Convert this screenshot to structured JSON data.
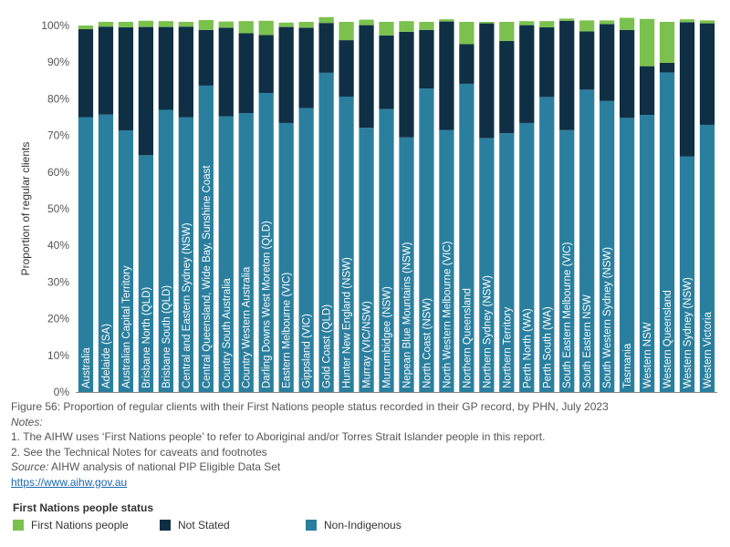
{
  "chart_data": {
    "type": "bar",
    "stacked": true,
    "orientation": "vertical",
    "ylabel": "Proportion of regular clients",
    "ylim": [
      0,
      100
    ],
    "yticks": [
      "0%",
      "10%",
      "20%",
      "30%",
      "40%",
      "50%",
      "60%",
      "70%",
      "80%",
      "90%",
      "100%"
    ],
    "grid": false,
    "legend_position": "bottom",
    "legend_title": "First Nations people status",
    "categories": [
      "Australia",
      "Adelaide (SA)",
      "Australian Capital Territory",
      "Brisbane North (QLD)",
      "Brisbane South (QLD)",
      "Central and Eastern Sydney (NSW)",
      "Central Queensland, Wide Bay, Sunshine Coast",
      "Country South Australia",
      "Country Western Australia",
      "Darling Downs West Moreton (QLD)",
      "Eastern Melbourne (VIC)",
      "Gippsland (VIC)",
      "Gold Coast (QLD)",
      "Hunter New England (NSW)",
      "Murray (VIC/NSW)",
      "Murrumbidgee (NSW)",
      "Nepean Blue Mountains (NSW)",
      "North Coast (NSW)",
      "North Western Melbourne (VIC)",
      "Northern Queensland",
      "Northern Sydney (NSW)",
      "Northern Territory",
      "Perth North (WA)",
      "Perth South (WA)",
      "South Eastern Melbourne (VIC)",
      "South Eastern NSW",
      "South Western Sydney (NSW)",
      "Tasmania",
      "Western NSW",
      "Western Queensland",
      "Western Sydney (NSW)",
      "Western Victoria"
    ],
    "series": [
      {
        "name": "Non-Indigenous",
        "color": "#2a7f9e",
        "values": [
          75.0,
          75.7,
          71.4,
          64.6,
          77.0,
          75.0,
          83.6,
          75.2,
          76.1,
          81.6,
          73.4,
          77.5,
          87.1,
          80.6,
          72.1,
          77.2,
          69.5,
          82.8,
          71.5,
          84.1,
          69.3,
          70.6,
          73.4,
          80.5,
          71.5,
          82.5,
          79.4,
          74.8,
          75.6,
          87.2,
          64.3,
          72.9
        ]
      },
      {
        "name": "Not Stated",
        "color": "#0f2f45",
        "values": [
          24.0,
          24.0,
          28.1,
          35.0,
          22.6,
          24.7,
          15.2,
          24.2,
          21.8,
          15.8,
          26.2,
          21.9,
          13.6,
          15.4,
          28.0,
          20.1,
          28.8,
          16.0,
          29.6,
          10.8,
          31.3,
          25.2,
          26.7,
          19.0,
          29.8,
          15.9,
          21.0,
          24.0,
          13.3,
          2.6,
          36.6,
          27.7
        ]
      },
      {
        "name": "First Nations people",
        "color": "#7ac14e",
        "values": [
          1.0,
          1.3,
          1.5,
          1.7,
          1.6,
          1.3,
          2.7,
          1.7,
          3.3,
          3.9,
          1.2,
          1.6,
          1.6,
          5.0,
          1.5,
          3.7,
          2.9,
          2.2,
          0.6,
          6.1,
          0.4,
          5.2,
          1.1,
          1.7,
          0.6,
          3.0,
          1.0,
          3.3,
          12.9,
          11.2,
          0.8,
          0.8
        ]
      }
    ]
  },
  "caption": {
    "figure_title": "Figure 56: Proportion of regular clients with their First Nations people status recorded in their GP record, by PHN, July 2023",
    "notes_heading": "Notes:",
    "note_1": "1. The AIHW uses ‘First Nations people’ to refer to Aboriginal and/or Torres Strait Islander people in this report.",
    "note_2": "2. See the Technical Notes for caveats and footnotes",
    "source_label": "Source:",
    "source_text": " AIHW analysis of national PIP Eligible Data Set",
    "link": "https://www.aihw.gov.au"
  },
  "legend": {
    "title": "First Nations people status",
    "items": [
      {
        "label": "First Nations people",
        "color": "#7ac14e"
      },
      {
        "label": "Not Stated",
        "color": "#0f2f45"
      },
      {
        "label": "Non-Indigenous",
        "color": "#2a7f9e"
      }
    ]
  }
}
